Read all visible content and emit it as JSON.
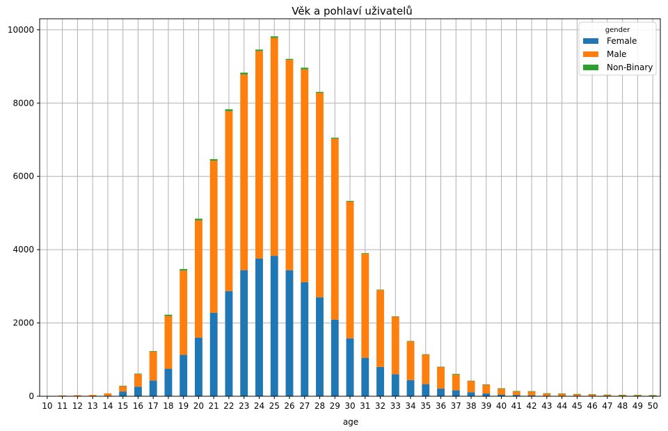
{
  "chart_data": {
    "type": "bar",
    "stacked": true,
    "title": "Věk a pohlaví uživatelů",
    "xlabel": "age",
    "ylabel": "",
    "ylim": [
      0,
      10300
    ],
    "yticks": [
      0,
      2000,
      4000,
      6000,
      8000,
      10000
    ],
    "grid": true,
    "legend": {
      "title": "gender",
      "placement": "top-right"
    },
    "categories": [
      "10",
      "11",
      "12",
      "13",
      "14",
      "15",
      "16",
      "17",
      "18",
      "19",
      "20",
      "21",
      "22",
      "23",
      "24",
      "25",
      "26",
      "27",
      "28",
      "29",
      "30",
      "31",
      "32",
      "33",
      "34",
      "35",
      "36",
      "37",
      "38",
      "39",
      "40",
      "41",
      "42",
      "43",
      "44",
      "45",
      "46",
      "47",
      "48",
      "49",
      "50"
    ],
    "series": [
      {
        "name": "Female",
        "color": "#1f77b4",
        "values": [
          0,
          2,
          3,
          4,
          15,
          130,
          260,
          430,
          750,
          1130,
          1600,
          2280,
          2870,
          3440,
          3760,
          3830,
          3440,
          3110,
          2700,
          2090,
          1580,
          1050,
          800,
          600,
          440,
          330,
          210,
          160,
          110,
          75,
          45,
          35,
          25,
          15,
          10,
          8,
          6,
          4,
          3,
          2,
          1
        ]
      },
      {
        "name": "Male",
        "color": "#ff7f0e",
        "values": [
          0,
          20,
          25,
          30,
          65,
          150,
          350,
          790,
          1440,
          2300,
          3200,
          4150,
          4910,
          5340,
          5660,
          5950,
          5740,
          5810,
          5580,
          4940,
          3730,
          2840,
          2100,
          1570,
          1060,
          810,
          590,
          430,
          310,
          245,
          170,
          105,
          110,
          65,
          65,
          52,
          49,
          38,
          35,
          32,
          28
        ]
      },
      {
        "name": "Non-Binary",
        "color": "#2ca02c",
        "values": [
          0,
          0,
          0,
          0,
          0,
          5,
          8,
          15,
          35,
          40,
          45,
          40,
          50,
          50,
          40,
          40,
          25,
          45,
          25,
          25,
          20,
          15,
          10,
          10,
          8,
          5,
          5,
          20,
          3,
          3,
          2,
          2,
          2,
          1,
          1,
          1,
          1,
          1,
          1,
          1,
          1
        ]
      }
    ]
  }
}
